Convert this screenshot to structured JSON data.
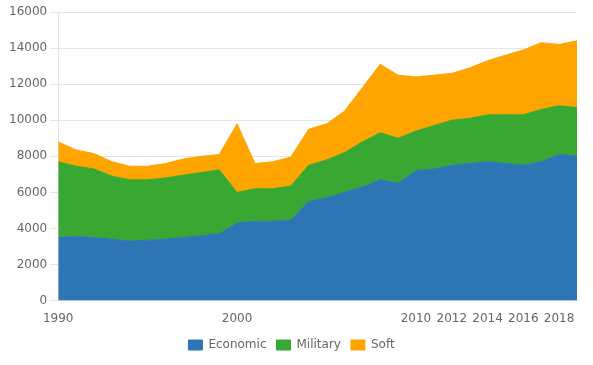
{
  "chart_data": {
    "type": "area",
    "stacked": true,
    "x": [
      1990,
      1991,
      1992,
      1993,
      1994,
      1995,
      1996,
      1997,
      1998,
      1999,
      2000,
      2001,
      2002,
      2003,
      2004,
      2005,
      2006,
      2007,
      2008,
      2009,
      2010,
      2011,
      2012,
      2013,
      2014,
      2015,
      2016,
      2017,
      2018,
      2019
    ],
    "series": [
      {
        "name": "Economic",
        "color": "#2E75B6",
        "values": [
          3500,
          3550,
          3500,
          3400,
          3300,
          3350,
          3400,
          3500,
          3600,
          3700,
          4300,
          4400,
          4400,
          4450,
          5500,
          5700,
          6000,
          6300,
          6700,
          6500,
          7200,
          7300,
          7500,
          7600,
          7700,
          7600,
          7500,
          7700,
          8100,
          8000
        ]
      },
      {
        "name": "Military",
        "color": "#38A832",
        "values": [
          4200,
          3900,
          3800,
          3500,
          3400,
          3350,
          3400,
          3450,
          3500,
          3550,
          1700,
          1800,
          1800,
          1900,
          2000,
          2100,
          2200,
          2500,
          2600,
          2500,
          2200,
          2400,
          2500,
          2500,
          2600,
          2700,
          2800,
          2900,
          2700,
          2700
        ]
      },
      {
        "name": "Soft",
        "color": "#FFA500",
        "values": [
          1100,
          900,
          850,
          800,
          750,
          750,
          800,
          900,
          900,
          850,
          3800,
          1400,
          1500,
          1600,
          2000,
          2000,
          2300,
          3000,
          3800,
          3500,
          3000,
          2800,
          2600,
          2800,
          3000,
          3300,
          3600,
          3700,
          3400,
          3700
        ]
      }
    ],
    "xlim": [
      1990,
      2019
    ],
    "xticks": [
      1990,
      2000,
      2010,
      2012,
      2014,
      2016,
      2018
    ],
    "ylim": [
      0,
      16000
    ],
    "yticks": [
      0,
      2000,
      4000,
      6000,
      8000,
      10000,
      12000,
      14000,
      16000
    ],
    "grid": "y",
    "legend": "bottom"
  }
}
